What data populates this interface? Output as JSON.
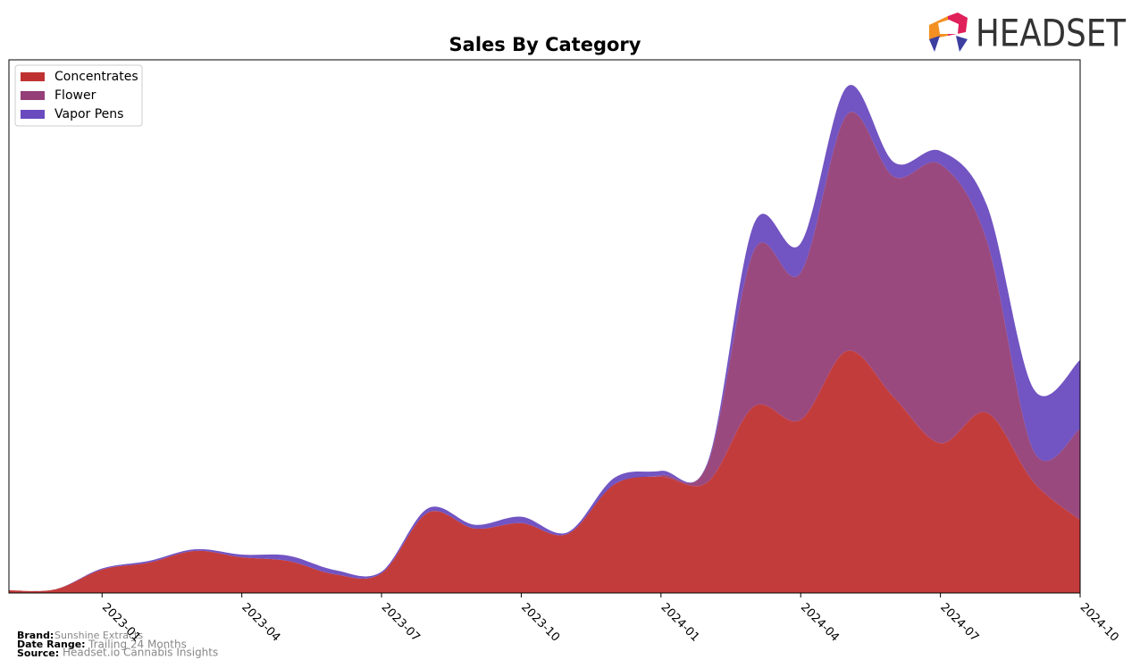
{
  "chart_data": {
    "type": "stacked-area",
    "title": "Sales By Category",
    "x": [
      "2022-11",
      "2022-12",
      "2023-01",
      "2023-02",
      "2023-03",
      "2023-04",
      "2023-05",
      "2023-06",
      "2023-07",
      "2023-08",
      "2023-09",
      "2023-10",
      "2023-11",
      "2023-12",
      "2024-01",
      "2024-02",
      "2024-03",
      "2024-04",
      "2024-05",
      "2024-06",
      "2024-07",
      "2024-08",
      "2024-09",
      "2024-10"
    ],
    "xticks": [
      "2023-01",
      "2023-04",
      "2023-07",
      "2023-10",
      "2024-01",
      "2024-04",
      "2024-07",
      "2024-10"
    ],
    "ylim": [
      0,
      100
    ],
    "legend": "upper-left",
    "series": [
      {
        "name": "Concentrates",
        "color": "#c03232",
        "values": [
          0.5,
          0.7,
          4.4,
          5.7,
          7.9,
          6.7,
          6.0,
          3.5,
          3.7,
          15.1,
          12.1,
          13.1,
          11.1,
          20.4,
          21.8,
          20.8,
          35.0,
          32.5,
          45.4,
          36.7,
          28.1,
          33.8,
          20.8,
          13.7
        ]
      },
      {
        "name": "Flower",
        "color": "#953f78",
        "values": [
          0,
          0,
          0,
          0,
          0,
          0,
          0,
          0,
          0,
          0,
          0,
          0,
          0,
          0,
          0.3,
          3.4,
          29.3,
          27.6,
          44.4,
          41.4,
          52.3,
          32.2,
          5.9,
          17.1
        ]
      },
      {
        "name": "Vapor Pens",
        "color": "#6a4bbf",
        "values": [
          0,
          0,
          0.2,
          0.3,
          0.3,
          0.5,
          1.0,
          0.8,
          0.3,
          0.8,
          0.7,
          1.2,
          0.3,
          1.2,
          0.8,
          0.3,
          5.0,
          5.5,
          5.2,
          2.7,
          2.5,
          6.7,
          11.6,
          12.9
        ]
      }
    ]
  },
  "footer": {
    "brand_label": "Brand:",
    "brand": "Sunshine Extracts",
    "range_label": "Date Range:",
    "range": "Trailing 24 Months",
    "source_label": "Source:",
    "source": "Headset.io Cannabis Insights"
  },
  "logo": "HEADSET"
}
